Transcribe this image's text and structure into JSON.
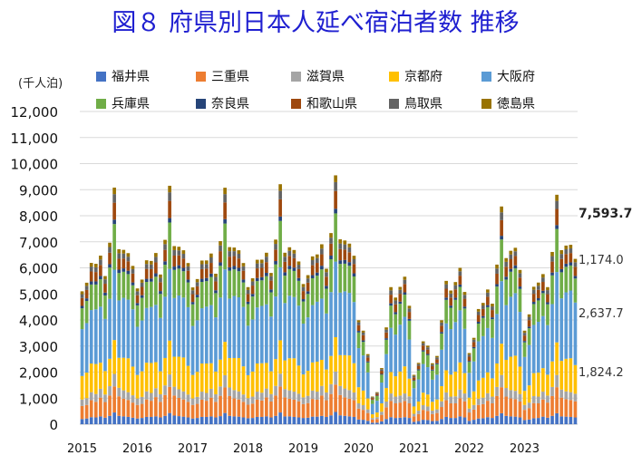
{
  "chart_data": {
    "type": "bar",
    "stacked": true,
    "title": "図８ 府県別日本人延べ宿泊者数 推移",
    "ylabel": "(千人泊)",
    "ylim": [
      0,
      12000
    ],
    "yticks": [
      0,
      1000,
      2000,
      3000,
      4000,
      5000,
      6000,
      7000,
      8000,
      9000,
      10000,
      11000,
      12000
    ],
    "ytick_labels": [
      "0",
      "1,000",
      "2,000",
      "3,000",
      "4,000",
      "5,000",
      "6,000",
      "7,000",
      "8,000",
      "9,000",
      "10,000",
      "11,000",
      "12,000"
    ],
    "x_start": "2015-01",
    "x_end": "2023-12",
    "x_labels": [
      "2015",
      "2016",
      "2017",
      "2018",
      "2019",
      "2020",
      "2021",
      "2022",
      "2023"
    ],
    "grid": true,
    "legend_position": "top",
    "colors": {
      "福井県": "#4472c4",
      "三重県": "#ed7d31",
      "滋賀県": "#a5a5a5",
      "京都府": "#ffc000",
      "大阪府": "#5b9bd5",
      "兵庫県": "#70ad47",
      "奈良県": "#264478",
      "和歌山県": "#9e480e",
      "鳥取県": "#636363",
      "徳島県": "#997300"
    },
    "series": [
      {
        "name": "福井県",
        "values": [
          200,
          220,
          270,
          260,
          300,
          250,
          320,
          450,
          320,
          300,
          280,
          250,
          220,
          240,
          280,
          280,
          300,
          260,
          320,
          430,
          330,
          310,
          290,
          260,
          220,
          240,
          280,
          280,
          300,
          260,
          310,
          430,
          320,
          300,
          290,
          260,
          230,
          240,
          280,
          280,
          300,
          260,
          320,
          450,
          300,
          300,
          280,
          260,
          240,
          250,
          290,
          290,
          320,
          280,
          340,
          470,
          340,
          320,
          300,
          280,
          180,
          170,
          130,
          60,
          60,
          110,
          200,
          270,
          240,
          250,
          270,
          240,
          90,
          120,
          170,
          160,
          120,
          130,
          200,
          280,
          240,
          240,
          300,
          260,
          130,
          170,
          220,
          230,
          270,
          240,
          320,
          420,
          320,
          300,
          290,
          260,
          160,
          180,
          230,
          240,
          290,
          250,
          320,
          420,
          300,
          290,
          280,
          260
        ]
      },
      {
        "name": "三重県",
        "values": [
          500,
          520,
          650,
          600,
          720,
          600,
          780,
          1000,
          750,
          680,
          650,
          580,
          520,
          540,
          670,
          620,
          740,
          600,
          800,
          1000,
          770,
          700,
          660,
          600,
          520,
          540,
          660,
          620,
          720,
          600,
          780,
          980,
          760,
          690,
          660,
          600,
          520,
          550,
          660,
          630,
          730,
          610,
          780,
          1000,
          730,
          680,
          660,
          620,
          530,
          560,
          680,
          650,
          780,
          640,
          820,
          1050,
          780,
          710,
          680,
          640,
          420,
          380,
          300,
          120,
          140,
          250,
          450,
          620,
          560,
          580,
          620,
          560,
          210,
          270,
          380,
          350,
          270,
          300,
          460,
          640,
          560,
          560,
          700,
          620,
          320,
          390,
          520,
          540,
          630,
          560,
          760,
          1000,
          740,
          690,
          670,
          610,
          390,
          440,
          580,
          560,
          660,
          580,
          760,
          1000,
          720,
          670,
          650,
          620
        ]
      },
      {
        "name": "滋賀県",
        "values": [
          250,
          260,
          310,
          300,
          340,
          290,
          360,
          480,
          330,
          320,
          300,
          280,
          250,
          270,
          310,
          300,
          340,
          290,
          370,
          480,
          340,
          330,
          310,
          280,
          250,
          270,
          310,
          300,
          340,
          290,
          360,
          470,
          330,
          320,
          310,
          280,
          250,
          270,
          310,
          300,
          340,
          290,
          370,
          490,
          320,
          320,
          310,
          290,
          260,
          280,
          320,
          310,
          370,
          300,
          380,
          500,
          350,
          340,
          330,
          300,
          200,
          180,
          140,
          60,
          70,
          120,
          220,
          290,
          260,
          270,
          290,
          270,
          100,
          130,
          180,
          170,
          130,
          140,
          220,
          300,
          260,
          270,
          330,
          300,
          150,
          180,
          240,
          250,
          290,
          260,
          350,
          470,
          330,
          320,
          320,
          290,
          190,
          210,
          270,
          260,
          300,
          270,
          350,
          470,
          310,
          300,
          300,
          290
        ]
      },
      {
        "name": "京都府",
        "values": [
          900,
          980,
          1100,
          1150,
          1000,
          900,
          1050,
          1300,
          1150,
          1250,
          1300,
          1100,
          900,
          980,
          1100,
          1150,
          1000,
          880,
          1050,
          1300,
          1150,
          1250,
          1300,
          1100,
          900,
          960,
          1080,
          1130,
          980,
          870,
          1030,
          1280,
          1130,
          1230,
          1280,
          1080,
          880,
          960,
          1080,
          1130,
          980,
          870,
          1030,
          1280,
          1100,
          1230,
          1280,
          1080,
          880,
          960,
          1080,
          1150,
          1000,
          880,
          1080,
          1320,
          1180,
          1280,
          1330,
          1120,
          620,
          560,
          420,
          140,
          180,
          320,
          520,
          820,
          780,
          920,
          1040,
          680,
          280,
          350,
          480,
          460,
          340,
          380,
          580,
          850,
          840,
          950,
          1040,
          780,
          420,
          520,
          700,
          760,
          800,
          700,
          900,
          1200,
          1080,
          1280,
          1350,
          1050,
          540,
          660,
          880,
          920,
          900,
          800,
          980,
          1250,
          1100,
          1250,
          1300,
          1100
        ]
      },
      {
        "name": "大阪府",
        "values": [
          1800,
          1900,
          2050,
          2100,
          2150,
          2000,
          2300,
          2700,
          2200,
          2300,
          2250,
          2200,
          1850,
          1950,
          2100,
          2150,
          2200,
          2050,
          2350,
          2750,
          2250,
          2350,
          2300,
          2250,
          1880,
          1980,
          2120,
          2180,
          2230,
          2080,
          2380,
          2780,
          2280,
          2380,
          2330,
          2280,
          1900,
          2000,
          2150,
          2200,
          2250,
          2100,
          2400,
          2800,
          2200,
          2400,
          2350,
          2300,
          1950,
          2050,
          2200,
          2300,
          2350,
          2150,
          2450,
          2900,
          2400,
          2450,
          2400,
          2350,
          1500,
          1350,
          1000,
          400,
          450,
          800,
          1300,
          1700,
          1600,
          1800,
          1900,
          1500,
          700,
          850,
          1100,
          1050,
          850,
          950,
          1400,
          1800,
          1750,
          1900,
          2000,
          1700,
          950,
          1150,
          1500,
          1600,
          1700,
          1550,
          1900,
          2400,
          2100,
          2300,
          2400,
          2100,
          1300,
          1550,
          1850,
          1950,
          2000,
          1900,
          2200,
          2700,
          2400,
          2550,
          2600,
          2400
        ]
      },
      {
        "name": "兵庫県",
        "values": [
          800,
          850,
          980,
          950,
          1050,
          900,
          1200,
          1750,
          1050,
          1000,
          980,
          920,
          820,
          870,
          1000,
          970,
          1080,
          920,
          1230,
          1780,
          1080,
          1030,
          1010,
          950,
          830,
          880,
          1010,
          980,
          1080,
          930,
          1220,
          1760,
          1070,
          1020,
          1000,
          940,
          830,
          880,
          1010,
          980,
          1080,
          930,
          1230,
          1780,
          1050,
          1020,
          1000,
          950,
          850,
          900,
          1030,
          1000,
          1120,
          950,
          1260,
          1850,
          1100,
          1060,
          1040,
          980,
          600,
          520,
          380,
          150,
          180,
          300,
          550,
          850,
          780,
          800,
          850,
          720,
          280,
          350,
          480,
          460,
          350,
          400,
          620,
          900,
          820,
          850,
          900,
          780,
          420,
          500,
          680,
          700,
          800,
          720,
          1050,
          1600,
          980,
          960,
          950,
          880,
          560,
          640,
          800,
          820,
          880,
          800,
          1100,
          1650,
          1000,
          980,
          960,
          920
        ]
      },
      {
        "name": "奈良県",
        "values": [
          90,
          100,
          120,
          120,
          130,
          110,
          130,
          170,
          130,
          130,
          130,
          110,
          90,
          100,
          120,
          120,
          130,
          110,
          130,
          170,
          130,
          130,
          130,
          110,
          90,
          100,
          120,
          120,
          130,
          110,
          130,
          170,
          130,
          130,
          130,
          110,
          90,
          100,
          120,
          120,
          130,
          110,
          130,
          170,
          130,
          130,
          130,
          110,
          90,
          100,
          120,
          120,
          140,
          110,
          140,
          180,
          140,
          140,
          140,
          120,
          60,
          55,
          40,
          15,
          20,
          30,
          60,
          90,
          80,
          85,
          90,
          70,
          30,
          40,
          50,
          45,
          35,
          40,
          60,
          90,
          80,
          85,
          90,
          75,
          40,
          50,
          70,
          70,
          80,
          70,
          95,
          140,
          110,
          110,
          115,
          95,
          55,
          65,
          85,
          85,
          90,
          80,
          110,
          150,
          120,
          120,
          120,
          100
        ]
      },
      {
        "name": "和歌山県",
        "values": [
          300,
          320,
          380,
          360,
          420,
          340,
          440,
          650,
          420,
          380,
          360,
          340,
          300,
          320,
          380,
          360,
          420,
          340,
          440,
          660,
          420,
          380,
          360,
          340,
          300,
          320,
          370,
          360,
          410,
          340,
          430,
          640,
          410,
          380,
          360,
          340,
          300,
          320,
          370,
          360,
          410,
          340,
          440,
          660,
          400,
          380,
          360,
          340,
          310,
          330,
          380,
          370,
          440,
          350,
          460,
          680,
          430,
          400,
          380,
          360,
          220,
          200,
          150,
          60,
          70,
          120,
          220,
          330,
          300,
          300,
          320,
          270,
          110,
          130,
          180,
          170,
          130,
          150,
          240,
          340,
          310,
          320,
          340,
          300,
          160,
          190,
          260,
          270,
          320,
          280,
          400,
          600,
          380,
          370,
          360,
          340,
          210,
          250,
          310,
          320,
          340,
          310,
          420,
          620,
          390,
          370,
          360,
          350
        ]
      },
      {
        "name": "鳥取県",
        "values": [
          150,
          160,
          190,
          180,
          210,
          170,
          220,
          330,
          210,
          190,
          180,
          170,
          150,
          160,
          190,
          180,
          210,
          170,
          220,
          330,
          210,
          190,
          180,
          170,
          150,
          160,
          190,
          180,
          210,
          170,
          220,
          320,
          210,
          190,
          180,
          170,
          150,
          160,
          190,
          180,
          210,
          170,
          220,
          330,
          200,
          190,
          180,
          170,
          155,
          165,
          195,
          185,
          220,
          175,
          230,
          340,
          215,
          200,
          190,
          180,
          110,
          100,
          75,
          30,
          35,
          60,
          110,
          165,
          150,
          150,
          160,
          135,
          55,
          65,
          90,
          85,
          65,
          75,
          120,
          170,
          155,
          160,
          170,
          150,
          80,
          95,
          130,
          135,
          160,
          140,
          200,
          300,
          190,
          185,
          180,
          170,
          105,
          125,
          155,
          160,
          170,
          155,
          210,
          310,
          195,
          185,
          180,
          175
        ]
      },
      {
        "name": "徳島県",
        "values": [
          110,
          120,
          140,
          135,
          150,
          125,
          165,
          250,
          155,
          140,
          135,
          125,
          110,
          120,
          140,
          135,
          150,
          125,
          165,
          250,
          155,
          140,
          135,
          125,
          110,
          120,
          140,
          135,
          150,
          125,
          165,
          245,
          155,
          140,
          135,
          125,
          110,
          120,
          140,
          135,
          150,
          125,
          165,
          250,
          150,
          140,
          135,
          125,
          115,
          125,
          145,
          140,
          165,
          130,
          175,
          260,
          160,
          150,
          140,
          135,
          80,
          75,
          55,
          25,
          25,
          45,
          85,
          125,
          110,
          115,
          120,
          100,
          40,
          50,
          70,
          65,
          50,
          55,
          90,
          130,
          115,
          120,
          130,
          110,
          60,
          70,
          100,
          100,
          120,
          105,
          150,
          225,
          145,
          140,
          135,
          125,
          80,
          95,
          115,
          120,
          130,
          115,
          160,
          235,
          145,
          140,
          135,
          130
        ]
      }
    ],
    "annotations": [
      {
        "text": "7,593.7",
        "value": 7593.7
      },
      {
        "text": "1,174.0",
        "value": 1174.0
      },
      {
        "text": "2,637.7",
        "value": 2637.7
      },
      {
        "text": "1,824.2",
        "value": 1824.2
      }
    ]
  }
}
